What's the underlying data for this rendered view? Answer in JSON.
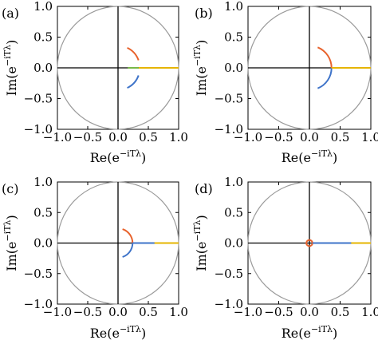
{
  "chart_data": [
    {
      "panel": "(a)",
      "type": "line",
      "xlabel": "",
      "ylabel": "Im(e^{-iTλ})",
      "xlim": [
        -1.0,
        1.0
      ],
      "ylim": [
        -1.0,
        1.0
      ],
      "xticks": [
        "−1.0",
        "−0.5",
        "0.0",
        "0.5",
        "1.0"
      ],
      "yticks": [
        "1.0",
        "0.5",
        "0.0",
        "−0.5",
        "−1.0"
      ],
      "unit_circle": true,
      "series": [
        {
          "color": "#e8622c",
          "arc": {
            "r": 0.36,
            "from_deg": 20,
            "to_deg": 65
          }
        },
        {
          "color": "#3f74c9",
          "arc": {
            "r": 0.36,
            "from_deg": -65,
            "to_deg": -20
          }
        },
        {
          "color": "#e6b400",
          "segment": {
            "x": [
              0.34,
              1.0
            ],
            "y": [
              0.0,
              0.0
            ]
          }
        },
        {
          "color": "#78b848",
          "segment": {
            "x": [
              0.16,
              0.34
            ],
            "y": [
              0.0,
              0.0
            ]
          }
        }
      ]
    },
    {
      "panel": "(b)",
      "type": "line",
      "xlabel": "Re(e^{-iTλ})",
      "ylabel": "",
      "xlim": [
        -1.0,
        1.0
      ],
      "ylim": [
        -1.0,
        1.0
      ],
      "xticks": [
        "−1.0",
        "−0.5",
        "0.0",
        "0.5",
        "1.0"
      ],
      "yticks": [
        "1.0",
        "0.5",
        "0.0",
        "−0.5",
        "−1.0"
      ],
      "unit_circle": true,
      "series": [
        {
          "color": "#e8622c",
          "arc": {
            "r": 0.36,
            "from_deg": 0,
            "to_deg": 68
          }
        },
        {
          "color": "#3f74c9",
          "arc": {
            "r": 0.36,
            "from_deg": -68,
            "to_deg": 0
          }
        },
        {
          "color": "#e6b400",
          "segment": {
            "x": [
              0.36,
              1.0
            ],
            "y": [
              0.0,
              0.0
            ]
          }
        }
      ]
    },
    {
      "panel": "(c)",
      "type": "line",
      "xlabel": "",
      "ylabel": "Im(e^{-iTλ})",
      "xlim": [
        -1.0,
        1.0
      ],
      "ylim": [
        -1.0,
        1.0
      ],
      "xticks": [
        "−1.0",
        "−0.5",
        "0.0",
        "0.5",
        "1.0"
      ],
      "yticks": [
        "1.0",
        "0.5",
        "0.0",
        "−0.5",
        "−1.0"
      ],
      "unit_circle": true,
      "series": [
        {
          "color": "#e8622c",
          "arc": {
            "r": 0.24,
            "from_deg": 0,
            "to_deg": 72
          }
        },
        {
          "color": "#3f74c9",
          "arc": {
            "r": 0.24,
            "from_deg": -72,
            "to_deg": 0
          }
        },
        {
          "color": "#e6b400",
          "segment": {
            "x": [
              0.6,
              1.0
            ],
            "y": [
              0.0,
              0.0
            ]
          }
        },
        {
          "color": "#3f74c9",
          "segment": {
            "x": [
              0.24,
              0.6
            ],
            "y": [
              0.0,
              0.0
            ]
          }
        }
      ]
    },
    {
      "panel": "(d)",
      "type": "line",
      "xlabel": "Re(e^{-iTλ})",
      "ylabel": "",
      "xlim": [
        -1.0,
        1.0
      ],
      "ylim": [
        -1.0,
        1.0
      ],
      "xticks": [
        "−1.0",
        "−0.5",
        "0.0",
        "0.5",
        "1.0"
      ],
      "yticks": [
        "1.0",
        "0.5",
        "0.0",
        "−0.5",
        "−1.0"
      ],
      "unit_circle": true,
      "series": [
        {
          "color": "#e8622c",
          "arc": {
            "r": 0.05,
            "from_deg": 0,
            "to_deg": 360
          }
        },
        {
          "color": "#3f74c9",
          "segment": {
            "x": [
              0.05,
              0.68
            ],
            "y": [
              0.0,
              0.0
            ]
          }
        },
        {
          "color": "#e6b400",
          "segment": {
            "x": [
              0.68,
              1.0
            ],
            "y": [
              0.0,
              0.0
            ]
          }
        }
      ]
    }
  ]
}
